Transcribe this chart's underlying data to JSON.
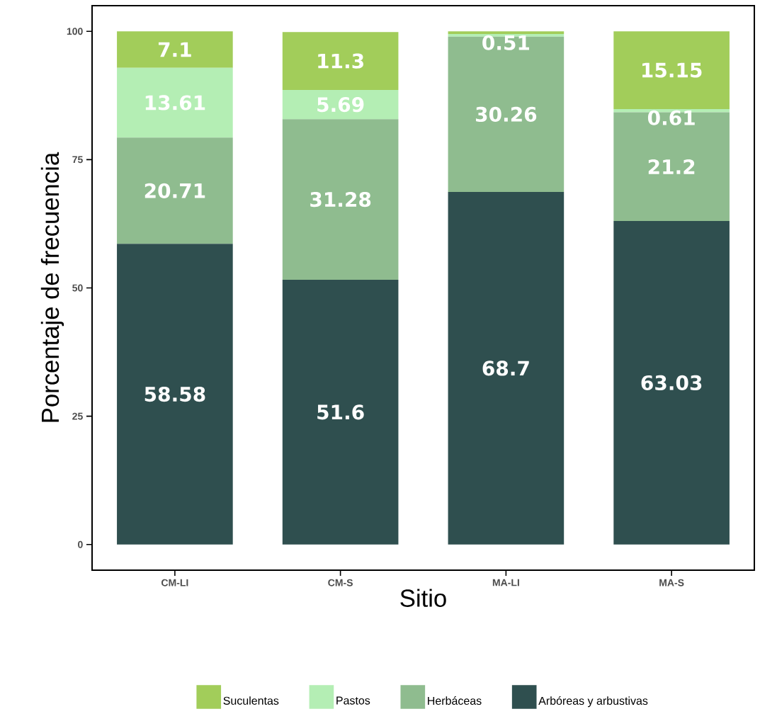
{
  "chart_data": {
    "type": "bar",
    "stacked": true,
    "xlabel": "Sitio",
    "ylabel": "Porcentaje de frecuencia",
    "categories": [
      "CM-LI",
      "CM-S",
      "MA-LI",
      "MA-S"
    ],
    "series": [
      {
        "name": "Arbóreas y arbustivas",
        "color": "#2f4f4f",
        "values": [
          58.58,
          51.6,
          68.7,
          63.03
        ],
        "value_labels": [
          "58.58",
          "51.6",
          "68.7",
          "63.03"
        ]
      },
      {
        "name": "Herbáceas",
        "color": "#8fbc8f",
        "values": [
          20.71,
          31.28,
          30.26,
          21.2
        ],
        "value_labels": [
          "20.71",
          "31.28",
          "30.26",
          "21.2"
        ]
      },
      {
        "name": "Pastos",
        "color": "#b4eeb4",
        "values": [
          13.61,
          5.69,
          0.51,
          0.61
        ],
        "value_labels": [
          "13.61",
          "5.69",
          "0.51",
          "0.61"
        ]
      },
      {
        "name": "Suculentas",
        "color": "#a2cd5a",
        "values": [
          7.1,
          11.3,
          0.53,
          15.15
        ],
        "value_labels": [
          "7.1",
          "11.3",
          null,
          "15.15"
        ]
      }
    ],
    "ylim": [
      -5,
      105
    ],
    "yticks": [
      0,
      25,
      50,
      75,
      100
    ],
    "legend": "bottom"
  }
}
